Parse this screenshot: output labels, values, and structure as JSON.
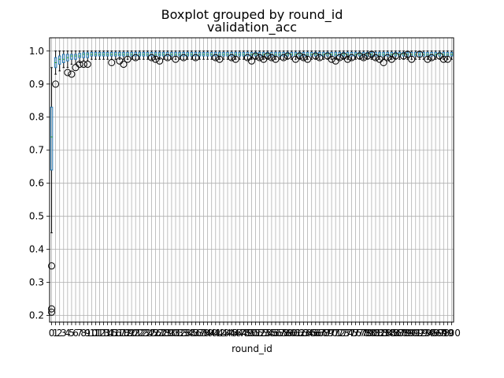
{
  "chart_data": {
    "type": "boxplot",
    "title": "Boxplot grouped by round_id",
    "subtitle": "validation_acc",
    "xlabel": "round_id",
    "ylabel": "",
    "ylim": [
      0.18,
      1.04
    ],
    "yticks": [
      0.2,
      0.3,
      0.4,
      0.5,
      0.6,
      0.7,
      0.8,
      0.9,
      1.0
    ],
    "grid": true,
    "rounds": [
      0,
      100
    ],
    "groups": [
      {
        "round": 0,
        "min": 0.45,
        "q1": 0.64,
        "median": 0.74,
        "q3": 0.83,
        "max": 0.95,
        "outliers": [
          0.35,
          0.22,
          0.21
        ]
      },
      {
        "round": 1,
        "min": 0.93,
        "q1": 0.95,
        "median": 0.965,
        "q3": 0.98,
        "max": 1.0,
        "outliers": [
          0.9
        ]
      },
      {
        "round": 2,
        "min": 0.94,
        "q1": 0.96,
        "median": 0.975,
        "q3": 0.985,
        "max": 1.0,
        "outliers": []
      },
      {
        "round": 3,
        "min": 0.95,
        "q1": 0.965,
        "median": 0.975,
        "q3": 0.99,
        "max": 1.0,
        "outliers": []
      },
      {
        "round": 4,
        "min": 0.95,
        "q1": 0.97,
        "median": 0.98,
        "q3": 0.99,
        "max": 1.0,
        "outliers": [
          0.935
        ]
      },
      {
        "round": 5,
        "min": 0.96,
        "q1": 0.975,
        "median": 0.985,
        "q3": 0.99,
        "max": 1.0,
        "outliers": [
          0.93
        ]
      },
      {
        "round": 6,
        "min": 0.96,
        "q1": 0.975,
        "median": 0.985,
        "q3": 0.99,
        "max": 1.0,
        "outliers": [
          0.95
        ]
      },
      {
        "round": 7,
        "min": 0.965,
        "q1": 0.98,
        "median": 0.985,
        "q3": 0.993,
        "max": 1.0,
        "outliers": [
          0.96
        ]
      },
      {
        "round": 8,
        "min": 0.97,
        "q1": 0.98,
        "median": 0.99,
        "q3": 0.995,
        "max": 1.0,
        "outliers": [
          0.96
        ]
      },
      {
        "round": 9,
        "min": 0.97,
        "q1": 0.98,
        "median": 0.99,
        "q3": 0.995,
        "max": 1.0,
        "outliers": [
          0.96
        ]
      }
    ],
    "default_group": {
      "min": 0.975,
      "q1": 0.985,
      "median": 0.99,
      "q3": 0.996,
      "max": 1.0
    },
    "extra_outliers": [
      [
        15,
        0.965
      ],
      [
        17,
        0.97
      ],
      [
        18,
        0.96
      ],
      [
        19,
        0.975
      ],
      [
        21,
        0.98
      ],
      [
        25,
        0.98
      ],
      [
        26,
        0.975
      ],
      [
        27,
        0.97
      ],
      [
        29,
        0.98
      ],
      [
        31,
        0.975
      ],
      [
        33,
        0.98
      ],
      [
        36,
        0.98
      ],
      [
        41,
        0.98
      ],
      [
        42,
        0.975
      ],
      [
        45,
        0.98
      ],
      [
        46,
        0.975
      ],
      [
        49,
        0.98
      ],
      [
        50,
        0.97
      ],
      [
        51,
        0.985
      ],
      [
        52,
        0.98
      ],
      [
        53,
        0.975
      ],
      [
        54,
        0.985
      ],
      [
        55,
        0.98
      ],
      [
        56,
        0.975
      ],
      [
        58,
        0.98
      ],
      [
        59,
        0.985
      ],
      [
        61,
        0.975
      ],
      [
        62,
        0.985
      ],
      [
        63,
        0.98
      ],
      [
        64,
        0.975
      ],
      [
        66,
        0.985
      ],
      [
        67,
        0.98
      ],
      [
        69,
        0.985
      ],
      [
        70,
        0.975
      ],
      [
        71,
        0.97
      ],
      [
        72,
        0.98
      ],
      [
        73,
        0.985
      ],
      [
        74,
        0.975
      ],
      [
        75,
        0.98
      ],
      [
        77,
        0.985
      ],
      [
        78,
        0.98
      ],
      [
        79,
        0.985
      ],
      [
        80,
        0.99
      ],
      [
        81,
        0.98
      ],
      [
        82,
        0.975
      ],
      [
        83,
        0.965
      ],
      [
        84,
        0.98
      ],
      [
        85,
        0.975
      ],
      [
        86,
        0.985
      ],
      [
        88,
        0.985
      ],
      [
        89,
        0.99
      ],
      [
        90,
        0.975
      ],
      [
        92,
        0.99
      ],
      [
        94,
        0.975
      ],
      [
        95,
        0.98
      ],
      [
        97,
        0.985
      ],
      [
        98,
        0.975
      ],
      [
        99,
        0.975
      ]
    ],
    "colors": {
      "box": "#1f77b4",
      "median": "#2ca02c",
      "whisker": "#000000",
      "grid": "#b0b0b0"
    }
  }
}
